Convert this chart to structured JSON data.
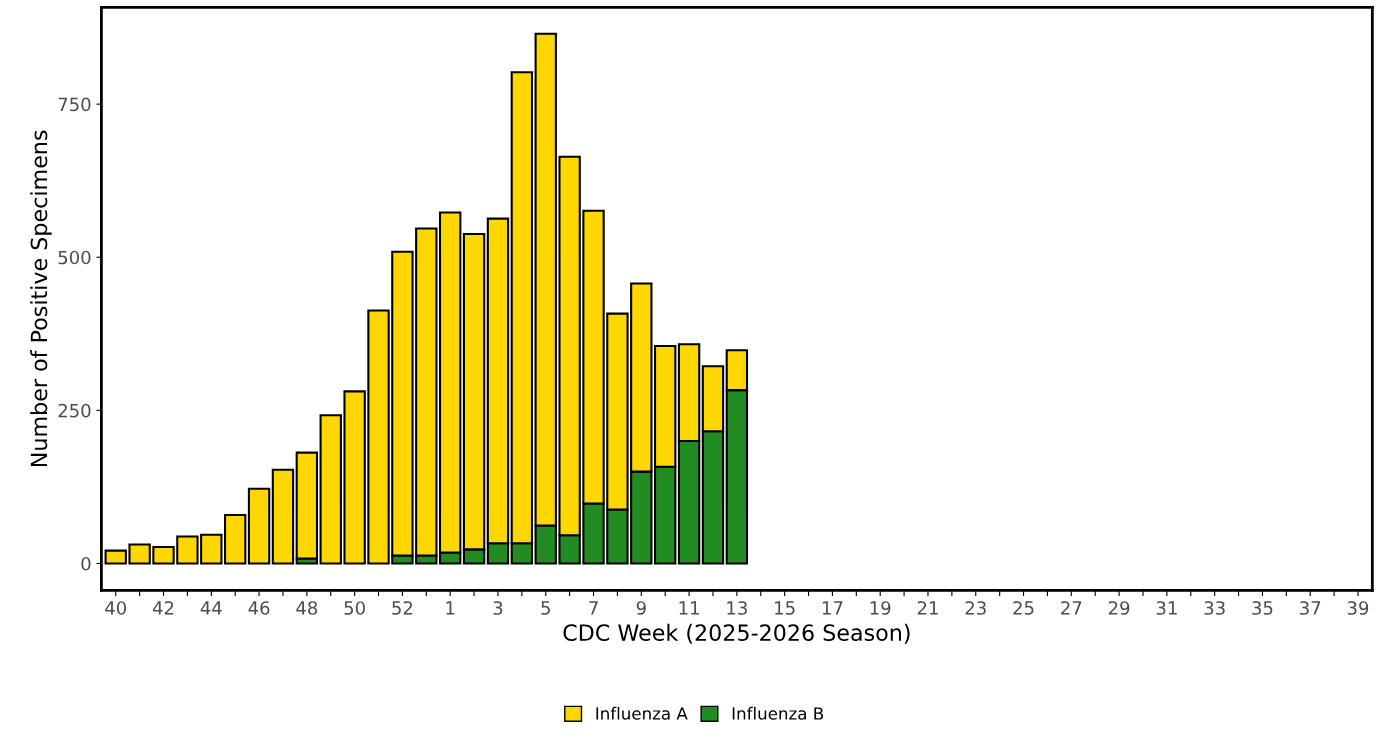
{
  "chart_data": {
    "type": "bar",
    "stacked": true,
    "xlabel": "CDC Week (2025-2026 Season)",
    "ylabel": "Number of Positive Specimens",
    "categories": [
      "40",
      null,
      "42",
      null,
      "44",
      null,
      "46",
      null,
      "48",
      null,
      "50",
      null,
      "52",
      null,
      "1",
      null,
      "3",
      null,
      "5",
      null,
      "7",
      null,
      "9",
      null,
      "11",
      null,
      "13",
      null,
      "15",
      null,
      "17",
      null,
      "19",
      null,
      "21",
      null,
      "23",
      null,
      "25",
      null,
      "27",
      null,
      "29",
      null,
      "31",
      null,
      "33",
      null,
      "35",
      null,
      "37",
      null,
      "39"
    ],
    "series": [
      {
        "name": "Influenza B",
        "color": "#228b22",
        "values": [
          null,
          null,
          null,
          null,
          null,
          null,
          null,
          null,
          8,
          null,
          null,
          null,
          13,
          13,
          18,
          23,
          33,
          33,
          62,
          46,
          98,
          88,
          150,
          158,
          200,
          216,
          283,
          null,
          null,
          null,
          null,
          null,
          null,
          null,
          null,
          null,
          null,
          null,
          null,
          null,
          null,
          null,
          null,
          null,
          null,
          null,
          null,
          null,
          null,
          null,
          null,
          null,
          null
        ]
      },
      {
        "name": "Influenza A",
        "color": "#ffd700",
        "values": [
          21,
          31,
          27,
          44,
          47,
          79,
          122,
          153,
          173,
          242,
          281,
          413,
          496,
          534,
          555,
          515,
          530,
          769,
          803,
          618,
          478,
          320,
          307,
          197,
          158,
          106,
          65,
          null,
          null,
          null,
          null,
          null,
          null,
          null,
          null,
          null,
          null,
          null,
          null,
          null,
          null,
          null,
          null,
          null,
          null,
          null,
          null,
          null,
          null,
          null,
          null,
          null,
          null
        ]
      }
    ],
    "ylim": [
      -44,
      908
    ],
    "yticks": [
      0,
      250,
      500,
      750
    ],
    "grid": false,
    "legend": "bottom"
  }
}
